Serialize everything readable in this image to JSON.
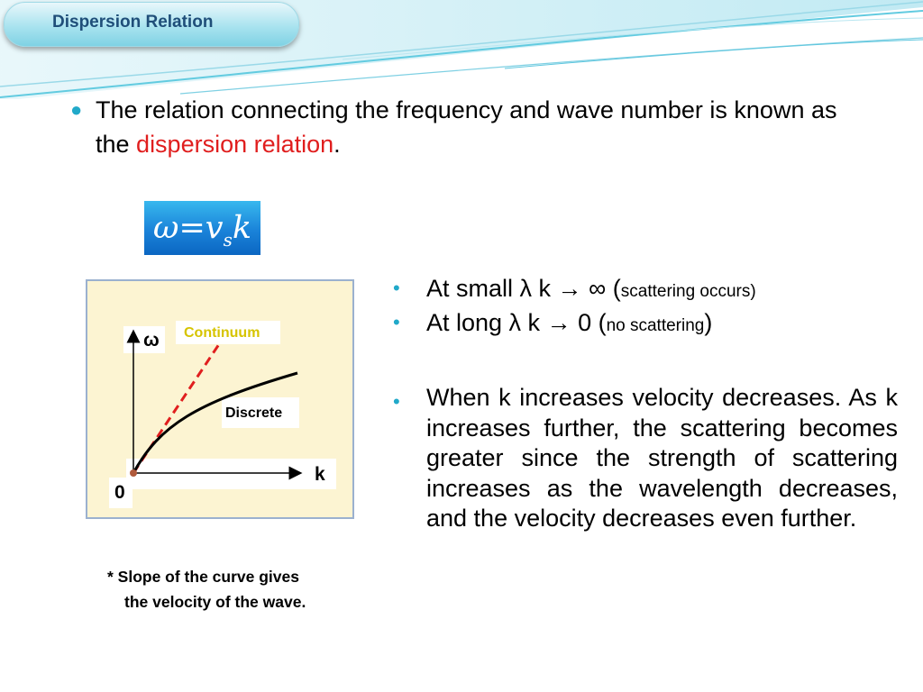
{
  "header": {
    "title": "Dispersion Relation"
  },
  "intro": {
    "text_before": "The relation connecting the frequency and wave number is known as the ",
    "highlight": "dispersion relation",
    "text_after": "."
  },
  "formula": {
    "lhs": "ω",
    "equals": "=",
    "v": "v",
    "subscript": "s",
    "k": "k"
  },
  "chart_data": {
    "type": "line",
    "ylabel": "ω",
    "xlabel": "k",
    "origin_label": "0",
    "series": [
      {
        "name": "Continuum",
        "style": "dashed",
        "color": "#e01e1e"
      },
      {
        "name": "Discrete",
        "style": "solid",
        "color": "#000000"
      }
    ]
  },
  "note": {
    "line1": "* Slope of the curve gives",
    "line2": "the velocity of  the wave."
  },
  "bullets": [
    {
      "main": "At small λ     k → ∞ (",
      "small": "scattering occurs)",
      "end": ""
    },
    {
      "main": "At  long  λ     k → 0  (",
      "small": "no scattering",
      "end": ")"
    },
    {
      "text": "When k increases velocity decreases. As k increases further, the scattering becomes greater since the strength of scattering increases as the wavelength decreases, and the velocity decreases even further."
    }
  ],
  "colors": {
    "accent": "#21a9c9",
    "highlight": "#e01e1e",
    "title": "#1f4e79"
  }
}
